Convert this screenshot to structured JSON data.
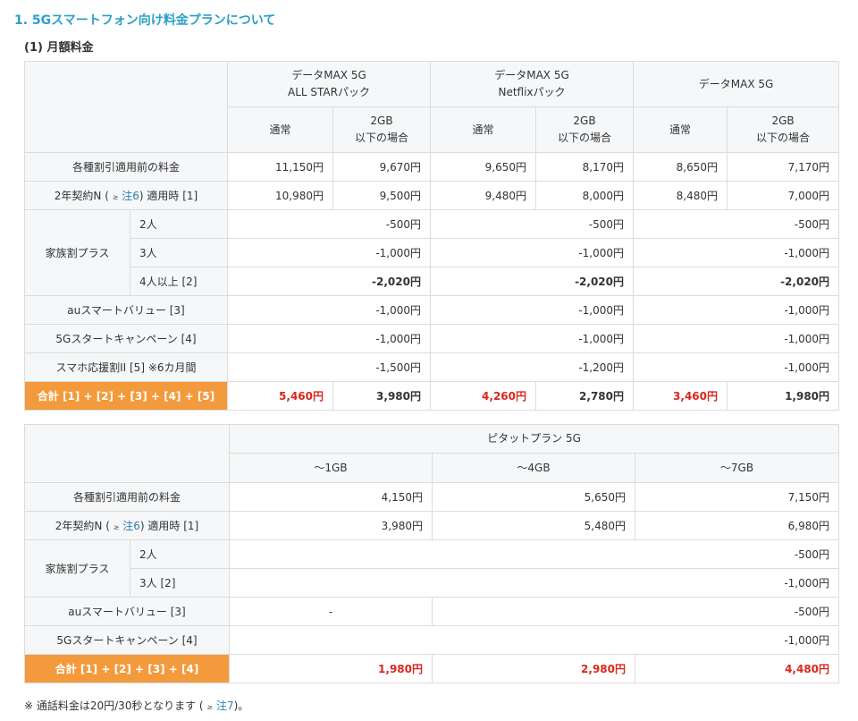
{
  "heading": "1. 5Gスマートフォン向け料金プランについて",
  "subheading": "(1) 月額料金",
  "t1": {
    "plans": [
      "データMAX 5G\nALL STARパック",
      "データMAX 5G\nNetflixパック",
      "データMAX 5G"
    ],
    "sub_normal": "通常",
    "sub_2gb": "2GB\n以下の場合",
    "r_base_label": "各種割引適用前の料金",
    "r_base": [
      "11,150円",
      "9,670円",
      "9,650円",
      "8,170円",
      "8,650円",
      "7,170円"
    ],
    "r_contract_pre": "2年契約N (",
    "r_contract_note": "注6",
    "r_contract_post": ") 適用時 [1]",
    "r_contract": [
      "10,980円",
      "9,500円",
      "9,480円",
      "8,000円",
      "8,480円",
      "7,000円"
    ],
    "family_label": "家族割プラス",
    "family": [
      {
        "label": "2人",
        "values": [
          "-500円",
          "-500円",
          "-500円"
        ]
      },
      {
        "label": "3人",
        "values": [
          "-1,000円",
          "-1,000円",
          "-1,000円"
        ]
      },
      {
        "label": "4人以上 [2]",
        "values": [
          "-2,020円",
          "-2,020円",
          "-2,020円"
        ]
      }
    ],
    "r_au_label": "auスマートバリュー [3]",
    "r_au": [
      "-1,000円",
      "-1,000円",
      "-1,000円"
    ],
    "r_camp_label": "5Gスタートキャンペーン [4]",
    "r_camp": [
      "-1,000円",
      "-1,000円",
      "-1,000円"
    ],
    "r_sumaho_label": "スマホ応援割II [5] ※6カ月間",
    "r_sumaho": [
      "-1,500円",
      "-1,200円",
      "-1,000円"
    ],
    "r_total_label": "合計 [1] + [2] + [3] + [4] + [5]",
    "r_total": [
      "5,460円",
      "3,980円",
      "4,260円",
      "2,780円",
      "3,460円",
      "1,980円"
    ]
  },
  "t2": {
    "plan": "ピタットプラン 5G",
    "tiers": [
      "～1GB",
      "～4GB",
      "～7GB"
    ],
    "r_base_label": "各種割引適用前の料金",
    "r_base": [
      "4,150円",
      "5,650円",
      "7,150円"
    ],
    "r_contract_pre": "2年契約N (",
    "r_contract_note": "注6",
    "r_contract_post": ") 適用時 [1]",
    "r_contract": [
      "3,980円",
      "5,480円",
      "6,980円"
    ],
    "family_label": "家族割プラス",
    "family": [
      {
        "label": "2人",
        "value": "-500円"
      },
      {
        "label": "3人 [2]",
        "value": "-1,000円"
      }
    ],
    "r_au_label": "auスマートバリュー [3]",
    "r_au_first": "-",
    "r_au_rest": "-500円",
    "r_camp_label": "5Gスタートキャンペーン [4]",
    "r_camp": "-1,000円",
    "r_total_label": "合計 [1] + [2] + [3] + [4]",
    "r_total": [
      "1,980円",
      "2,980円",
      "4,480円"
    ]
  },
  "footnote_pre": "※  通話料金は20円/30秒となります (",
  "footnote_note": "注7",
  "footnote_post": ")。",
  "arrow_glyph": "≥"
}
